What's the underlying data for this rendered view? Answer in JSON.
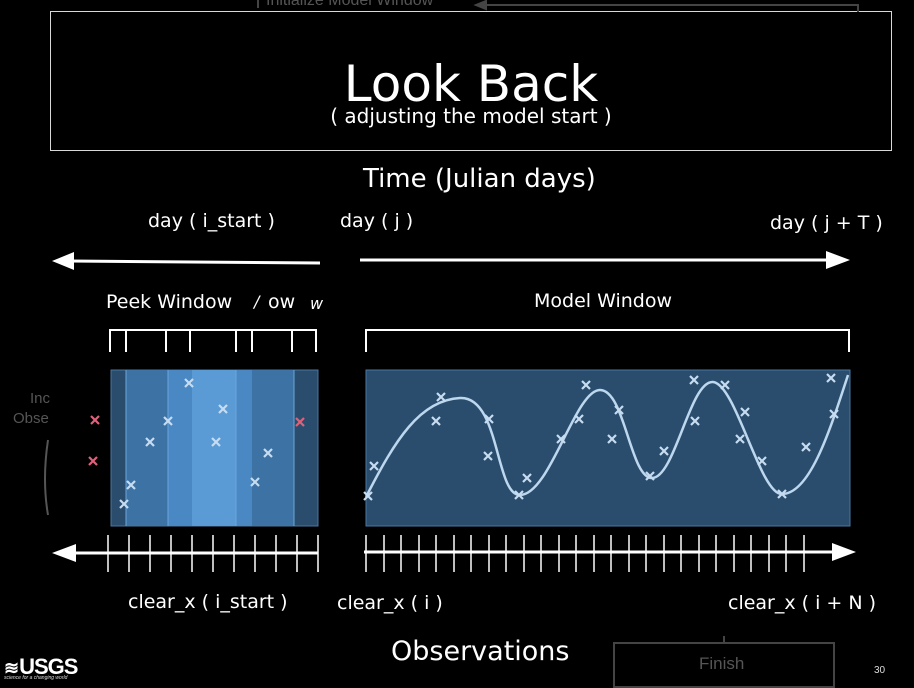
{
  "slide": {
    "title": "Look Back",
    "subtitle": "( adjusting the model start )",
    "page_number": "30"
  },
  "ghost": {
    "init_window_label": "Initialize Model Window",
    "left_label_line1": "Inc",
    "left_label_line2": "Obse",
    "finish_label": "Finish"
  },
  "timeline": {
    "heading": "Time (Julian days)",
    "label_start": "day ( i_start )",
    "label_mid": "day ( j )",
    "label_end": "day ( j + T )"
  },
  "windows": {
    "peek_label": "Peek Window",
    "peek_ghost1": "ow",
    "peek_ghost2": "w",
    "peek_ghost3": "/",
    "model_label": "Model Window"
  },
  "observations": {
    "heading": "Observations",
    "label_start": "clear_x ( i_start )",
    "label_mid": "clear_x ( i )",
    "label_end": "clear_x ( i + N )"
  },
  "logo": {
    "text": "USGS",
    "tagline": "science for a changing world"
  },
  "colors": {
    "background": "#000000",
    "panel": "#2a4d6e",
    "panel_light": "#5b9bd5",
    "curve": "#bdd7ee",
    "marker_outlier": "#e0607a"
  }
}
